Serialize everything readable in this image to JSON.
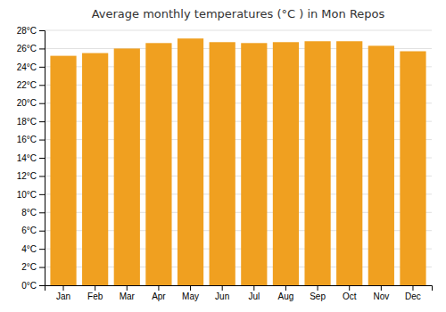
{
  "chart_data": {
    "type": "bar",
    "title": "Average monthly temperatures (°C ) in Mon Repos",
    "categories": [
      "Jan",
      "Feb",
      "Mar",
      "Apr",
      "May",
      "Jun",
      "Jul",
      "Aug",
      "Sep",
      "Oct",
      "Nov",
      "Dec"
    ],
    "values": [
      25.2,
      25.5,
      26.0,
      26.6,
      27.1,
      26.7,
      26.6,
      26.7,
      26.8,
      26.8,
      26.3,
      25.7
    ],
    "color": "#F0A020",
    "ylim": [
      0,
      28
    ],
    "yticks": [
      {
        "value": 0,
        "label": "0°C"
      },
      {
        "value": 2,
        "label": "2°C"
      },
      {
        "value": 4,
        "label": "4°C"
      },
      {
        "value": 6,
        "label": "6°C"
      },
      {
        "value": 8,
        "label": "8°C"
      },
      {
        "value": 10,
        "label": "10°C"
      },
      {
        "value": 12,
        "label": "12°C"
      },
      {
        "value": 14,
        "label": "14°C"
      },
      {
        "value": 16,
        "label": "16°C"
      },
      {
        "value": 18,
        "label": "18°C"
      },
      {
        "value": 20,
        "label": "20°C"
      },
      {
        "value": 22,
        "label": "22°C"
      },
      {
        "value": 24,
        "label": "24°C"
      },
      {
        "value": 26,
        "label": "26°C"
      },
      {
        "value": 28,
        "label": "28°C"
      }
    ],
    "grid": true
  }
}
